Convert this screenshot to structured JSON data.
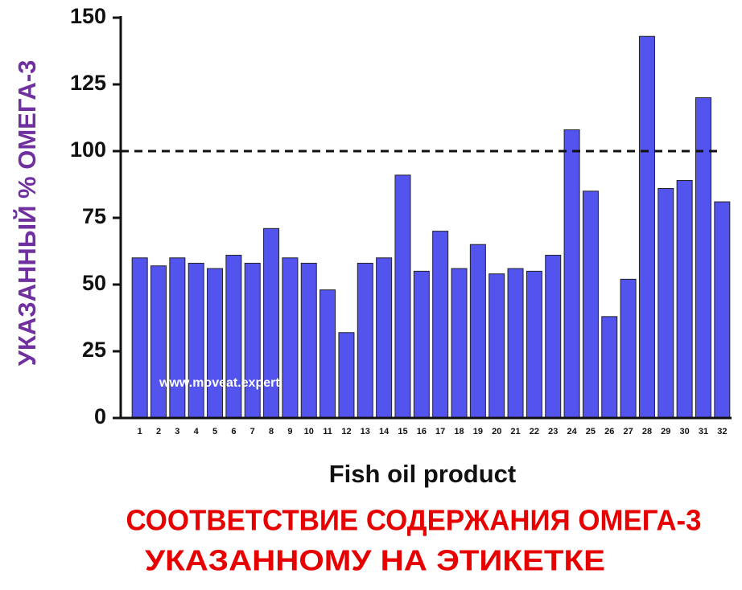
{
  "chart_data": {
    "type": "bar",
    "title": [
      "СООТВЕТСТВИЕ СОДЕРЖАНИЯ ОМЕГА-3",
      "УКАЗАННОМУ НА ЭТИКЕТКЕ"
    ],
    "x_label": "Fish oil product",
    "y_label": "УКАЗАННЫЙ % ОМЕГА-3",
    "watermark": "www.moveat.expert",
    "categories": [
      "1",
      "2",
      "3",
      "4",
      "5",
      "6",
      "7",
      "8",
      "9",
      "10",
      "11",
      "12",
      "13",
      "14",
      "15",
      "16",
      "17",
      "18",
      "19",
      "20",
      "21",
      "22",
      "23",
      "24",
      "25",
      "26",
      "27",
      "28",
      "29",
      "30",
      "31",
      "32"
    ],
    "values": [
      60,
      57,
      60,
      58,
      56,
      61,
      58,
      71,
      60,
      58,
      48,
      32,
      58,
      60,
      91,
      55,
      70,
      56,
      65,
      54,
      56,
      55,
      61,
      108,
      85,
      38,
      52,
      143,
      86,
      89,
      120,
      81
    ],
    "color": "#5353ee",
    "reference_line": 100,
    "ylim": [
      0,
      150
    ],
    "yticks": [
      0,
      25,
      50,
      75,
      100,
      125,
      150
    ]
  }
}
